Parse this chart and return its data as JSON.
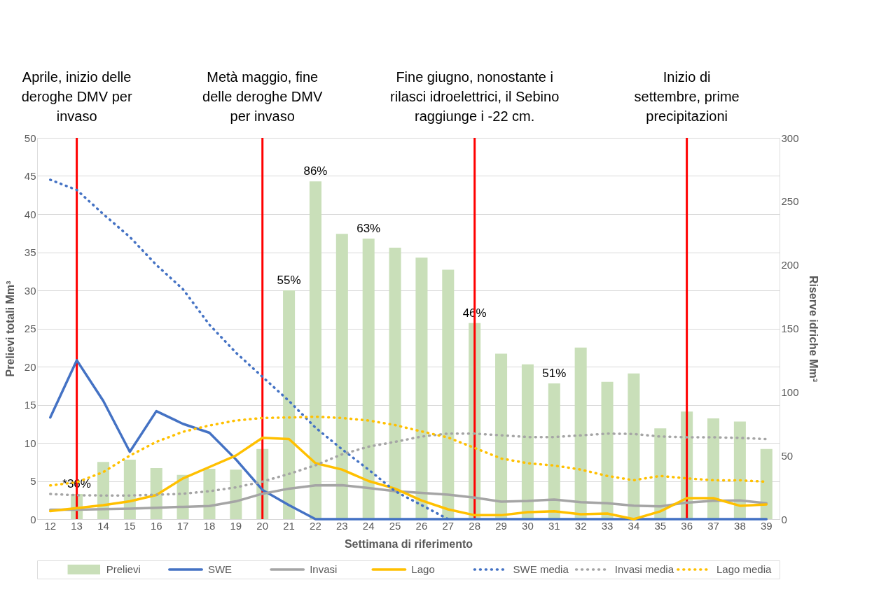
{
  "chart_data": {
    "type": "bar",
    "xlabel": "Settimana di riferimento",
    "ylabel": "Prelievi totali Mm³",
    "y2label": "Riserve idriche Mm³",
    "categories": [
      "12",
      "13",
      "14",
      "15",
      "16",
      "17",
      "18",
      "19",
      "20",
      "21",
      "22",
      "23",
      "24",
      "25",
      "26",
      "27",
      "28",
      "29",
      "30",
      "31",
      "32",
      "33",
      "34",
      "35",
      "36",
      "37",
      "38",
      "39"
    ],
    "series": [
      {
        "name": "Prelievi",
        "axis": "y",
        "color": "#c9dfb9",
        "values": [
          null,
          3.3,
          7.5,
          7.8,
          6.7,
          5.8,
          6.6,
          6.5,
          9.2,
          30.0,
          44.3,
          37.4,
          36.8,
          35.6,
          34.3,
          32.7,
          25.7,
          21.7,
          20.3,
          17.8,
          22.5,
          18.0,
          19.1,
          11.9,
          14.1,
          13.2,
          12.8,
          9.2
        ]
      },
      {
        "name": "SWE",
        "type": "line",
        "axis": "y2",
        "line_style": "solid",
        "color": "#4472c4",
        "values": [
          80,
          125,
          93,
          53,
          85,
          75,
          68,
          47,
          23,
          11,
          0,
          0,
          0,
          0,
          0,
          0,
          0,
          0,
          0,
          0,
          0,
          0,
          0,
          0,
          0,
          0,
          0,
          0
        ]
      },
      {
        "name": "Invasi",
        "type": "line",
        "axis": "y2",
        "line_style": "solid",
        "color": "#a5a5a5",
        "values": [
          7.5,
          7.5,
          7.8,
          8.3,
          9,
          9.7,
          10.3,
          14,
          20,
          24,
          26.5,
          26.7,
          24.5,
          22,
          20.7,
          19.3,
          16.9,
          13.8,
          14.3,
          15.4,
          13.4,
          12.5,
          10.6,
          10.1,
          13,
          14.5,
          14.7,
          12.5
        ]
      },
      {
        "name": "Lago",
        "type": "line",
        "axis": "y2",
        "line_style": "solid",
        "color": "#ffc000",
        "values": [
          6.3,
          8.7,
          11,
          14,
          19,
          32,
          41,
          50,
          64,
          63,
          44,
          39,
          30,
          24,
          14.7,
          7.7,
          3.1,
          3.1,
          5.5,
          6.2,
          3.9,
          4.4,
          0,
          6.1,
          16.5,
          16.5,
          10.5,
          11.6
        ]
      },
      {
        "name": "SWE media",
        "type": "line",
        "axis": "y2",
        "line_style": "dotted",
        "color": "#4472c4",
        "values": [
          267,
          259,
          240,
          222,
          200,
          181,
          153,
          131,
          112,
          93,
          72,
          55,
          39,
          22,
          11,
          0,
          null,
          null,
          null,
          null,
          null,
          null,
          null,
          null,
          null,
          null,
          null,
          null
        ]
      },
      {
        "name": "Invasi media",
        "type": "line",
        "axis": "y2",
        "line_style": "dotted",
        "color": "#a5a5a5",
        "values": [
          19.8,
          18.8,
          18.6,
          18.6,
          19.2,
          20,
          22,
          25,
          29.5,
          35.6,
          42.4,
          51,
          57,
          60.8,
          65,
          67.3,
          67.3,
          66,
          64.6,
          64.6,
          65.9,
          67.3,
          67,
          65,
          64.4,
          64.4,
          63.9,
          63
        ]
      },
      {
        "name": "Lago media",
        "type": "line",
        "axis": "y2",
        "line_style": "dotted",
        "color": "#ffc000",
        "values": [
          26.5,
          29,
          37,
          50,
          60.8,
          68.7,
          73.7,
          77.6,
          79.6,
          80,
          80.6,
          79.6,
          77.6,
          74,
          69,
          64.2,
          56,
          47.7,
          44,
          42.2,
          39,
          34,
          30.6,
          34,
          32.1,
          30.6,
          30.6,
          29.4
        ]
      }
    ],
    "ylim": [
      0,
      50
    ],
    "yticks": [
      0,
      5,
      10,
      15,
      20,
      25,
      30,
      35,
      40,
      45,
      50
    ],
    "y2lim": [
      0,
      300
    ],
    "y2ticks": [
      0,
      50,
      100,
      150,
      200,
      250,
      300
    ],
    "grid": "y",
    "legend": "bottom",
    "ref_lines": [
      {
        "axis": "x",
        "value": "13",
        "color": "#ff0000",
        "label": "Aprile, inizio delle\nderoghe DMV per\ninvaso"
      },
      {
        "axis": "x",
        "value": "20",
        "color": "#ff0000",
        "label": "Metà maggio, fine\ndelle deroghe DMV\nper invaso"
      },
      {
        "axis": "x",
        "value": "28",
        "color": "#ff0000",
        "label": "Fine giugno, nonostante i\nrilasci idroelettrici, il Sebino\nraggiunge i -22 cm."
      },
      {
        "axis": "x",
        "value": "36",
        "color": "#ff0000",
        "label": "Inizio di\nsettembre, prime\nprecipitazioni"
      }
    ],
    "annotations": [
      {
        "text": "*36%",
        "x": "13",
        "y": 3.3
      },
      {
        "text": "55%",
        "x": "21",
        "y": 30.0
      },
      {
        "text": "86%",
        "x": "22",
        "y": 44.3
      },
      {
        "text": "63%",
        "x": "24",
        "y": 36.8
      },
      {
        "text": "46%",
        "x": "28",
        "y": 25.7
      },
      {
        "text": "51%",
        "x": "31",
        "y": 17.8
      }
    ]
  }
}
